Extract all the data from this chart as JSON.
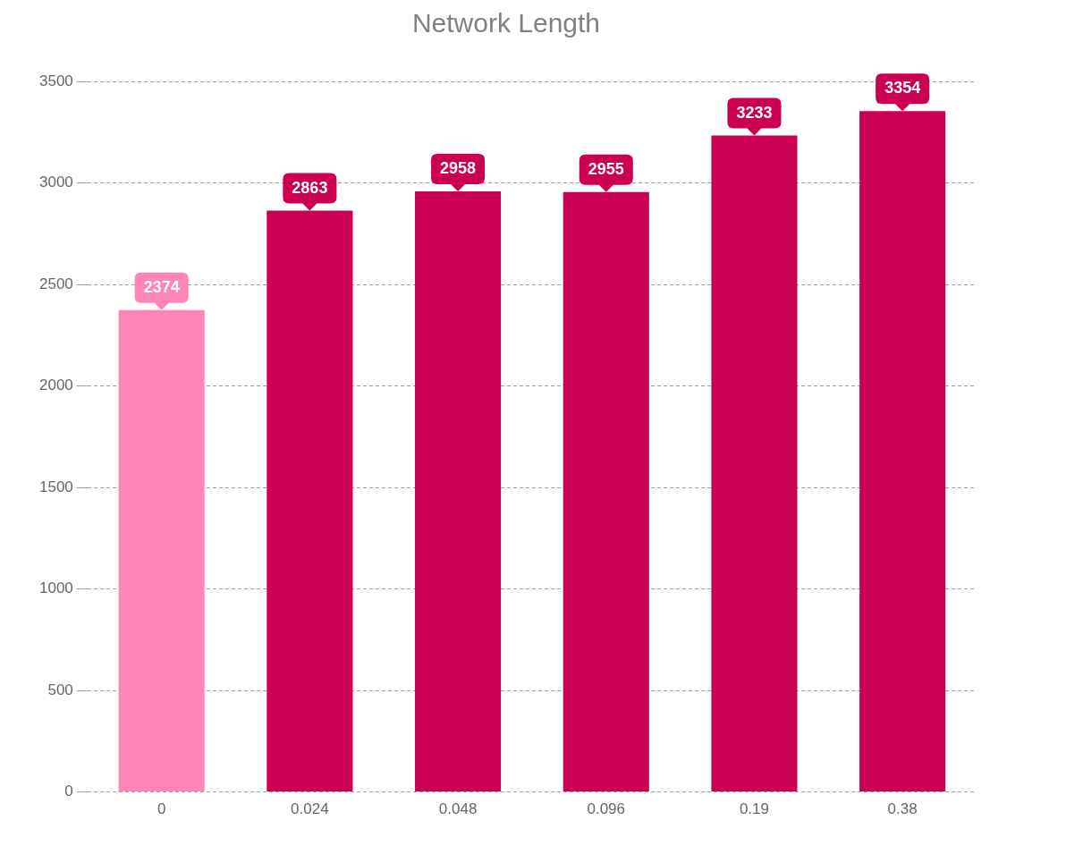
{
  "chart_data": {
    "type": "bar",
    "title": "Network Length",
    "categories": [
      "0",
      "0.024",
      "0.048",
      "0.096",
      "0.19",
      "0.38"
    ],
    "values": [
      2374,
      2863,
      2958,
      2955,
      3233,
      3354
    ],
    "colors": [
      "#ff85b8",
      "#cc0052",
      "#cc0052",
      "#cc0052",
      "#cc0052",
      "#cc0052"
    ],
    "ylim": [
      0,
      3500
    ],
    "yticks": [
      0,
      500,
      1000,
      1500,
      2000,
      2500,
      3000,
      3500
    ],
    "grid": "y",
    "legend": false,
    "data_labels": true
  }
}
